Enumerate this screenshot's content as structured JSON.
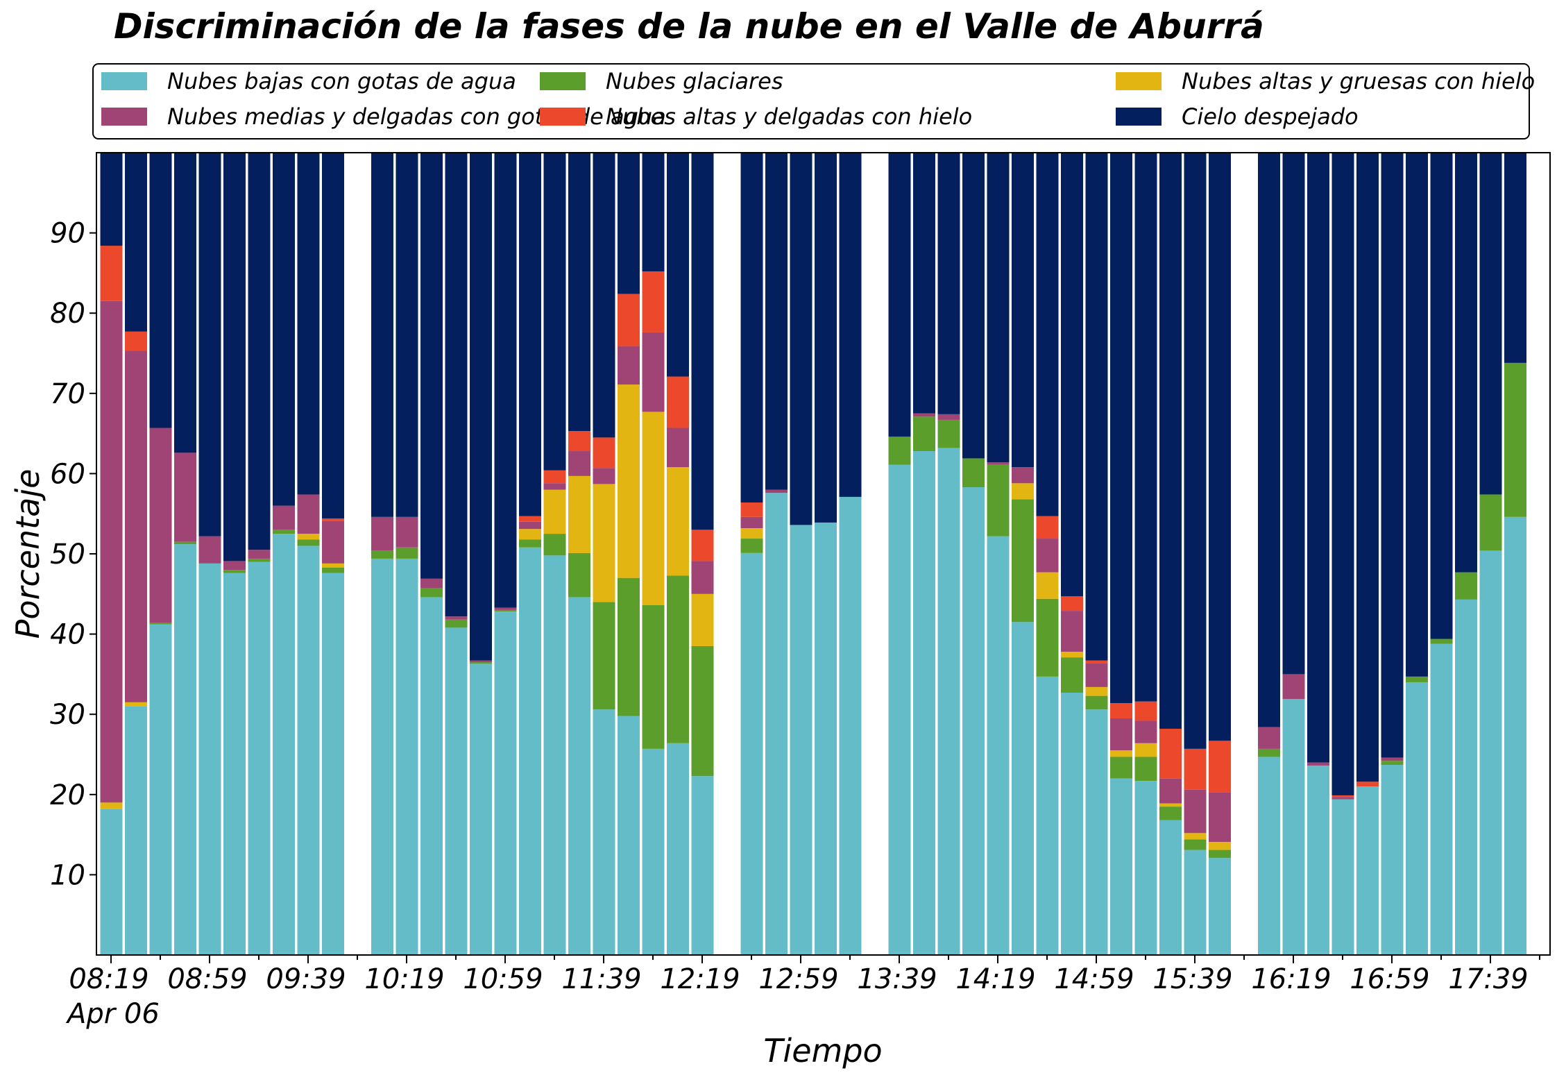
{
  "chart_data": {
    "type": "bar",
    "stacked": true,
    "title": "Discriminación de la fases de la nube en el Valle de Aburrá",
    "xlabel": "Tiempo",
    "ylabel": "Porcentaje",
    "ylim": [
      0,
      100
    ],
    "yticks": [
      10,
      20,
      30,
      40,
      50,
      60,
      70,
      80,
      90
    ],
    "grid": false,
    "legend_placement": "top, above plot, 3 columns",
    "x_tick_labels": [
      "08:19",
      "08:59",
      "09:39",
      "10:19",
      "10:59",
      "11:39",
      "12:19",
      "12:59",
      "13:39",
      "14:19",
      "14:59",
      "15:39",
      "16:19",
      "16:59",
      "17:39"
    ],
    "x_date_label": "Apr 06",
    "series": [
      {
        "name": "Nubes bajas con gotas de agua",
        "color": "#64bcc8"
      },
      {
        "name": "Nubes glaciares",
        "color": "#5b9e2b"
      },
      {
        "name": "Nubes altas y gruesas con hielo",
        "color": "#e3b512"
      },
      {
        "name": "Nubes medias y delgadas con gotas de agua",
        "color": "#a04476"
      },
      {
        "name": "Nubes altas y delgadas con hielo",
        "color": "#ec492c"
      },
      {
        "name": "Cielo despejado",
        "color": "#031f5e"
      }
    ],
    "bars": [
      {
        "time": "08:19",
        "values": [
          18.2,
          0,
          0.8,
          62.5,
          6.9,
          11.6
        ]
      },
      {
        "time": "08:29",
        "values": [
          31.0,
          0,
          0.5,
          43.8,
          2.4,
          22.3
        ]
      },
      {
        "time": "08:39",
        "values": [
          41.2,
          0.2,
          0,
          24.3,
          0,
          34.3
        ]
      },
      {
        "time": "08:49",
        "values": [
          51.2,
          0.3,
          0,
          11.1,
          0,
          37.4
        ]
      },
      {
        "time": "08:59",
        "values": [
          48.8,
          0,
          0,
          3.4,
          0,
          47.8
        ]
      },
      {
        "time": "09:09",
        "values": [
          47.6,
          0.4,
          0,
          1.1,
          0,
          50.9
        ]
      },
      {
        "time": "09:19",
        "values": [
          49.0,
          0.4,
          0,
          1.1,
          0,
          49.5
        ]
      },
      {
        "time": "09:29",
        "values": [
          52.5,
          0.5,
          0,
          3.0,
          0,
          44.0
        ]
      },
      {
        "time": "09:39",
        "values": [
          51.0,
          0.8,
          0.7,
          4.9,
          0,
          42.6
        ]
      },
      {
        "time": "09:49",
        "values": [
          47.6,
          0.7,
          0.5,
          5.3,
          0.3,
          45.6
        ]
      },
      {
        "time": "09:59",
        "values": [
          0,
          0,
          0,
          0,
          0,
          0
        ]
      },
      {
        "time": "10:09",
        "values": [
          49.4,
          1.0,
          0,
          4.2,
          0,
          45.4
        ]
      },
      {
        "time": "10:19",
        "values": [
          49.4,
          1.4,
          0,
          3.8,
          0,
          45.4
        ]
      },
      {
        "time": "10:29",
        "values": [
          44.6,
          1.1,
          0,
          1.2,
          0,
          53.1
        ]
      },
      {
        "time": "10:39",
        "values": [
          40.8,
          1.0,
          0,
          0.4,
          0,
          57.8
        ]
      },
      {
        "time": "10:49",
        "values": [
          36.3,
          0.2,
          0,
          0.2,
          0,
          63.3
        ]
      },
      {
        "time": "10:59",
        "values": [
          42.8,
          0.2,
          0,
          0.3,
          0,
          56.7
        ]
      },
      {
        "time": "11:09",
        "values": [
          50.8,
          1.0,
          1.3,
          0.9,
          0.7,
          45.3
        ]
      },
      {
        "time": "11:19",
        "values": [
          49.8,
          2.7,
          5.5,
          0.8,
          1.6,
          39.6
        ]
      },
      {
        "time": "11:29",
        "values": [
          44.6,
          5.5,
          9.6,
          3.1,
          2.5,
          34.7
        ]
      },
      {
        "time": "11:39",
        "values": [
          30.6,
          13.4,
          14.7,
          2.0,
          3.8,
          35.5
        ]
      },
      {
        "time": "11:49",
        "values": [
          29.8,
          17.2,
          24.1,
          4.8,
          6.5,
          17.6
        ]
      },
      {
        "time": "11:59",
        "values": [
          25.7,
          17.9,
          24.1,
          9.9,
          7.6,
          14.8
        ]
      },
      {
        "time": "12:09",
        "values": [
          26.4,
          20.9,
          13.5,
          4.9,
          6.4,
          27.9
        ]
      },
      {
        "time": "12:19",
        "values": [
          22.3,
          16.2,
          6.5,
          4.1,
          3.9,
          47.0
        ]
      },
      {
        "time": "12:29",
        "values": [
          0,
          0,
          0,
          0,
          0,
          0
        ]
      },
      {
        "time": "12:39",
        "values": [
          50.1,
          1.8,
          1.3,
          1.4,
          1.8,
          43.6
        ]
      },
      {
        "time": "12:49",
        "values": [
          57.6,
          0,
          0,
          0.4,
          0,
          42.0
        ]
      },
      {
        "time": "12:59",
        "values": [
          53.6,
          0,
          0,
          0,
          0,
          46.4
        ]
      },
      {
        "time": "13:09",
        "values": [
          53.9,
          0,
          0,
          0,
          0,
          46.1
        ]
      },
      {
        "time": "13:19",
        "values": [
          57.1,
          0,
          0,
          0,
          0,
          42.9
        ]
      },
      {
        "time": "13:29",
        "values": [
          0,
          0,
          0,
          0,
          0,
          0
        ]
      },
      {
        "time": "13:39",
        "values": [
          61.1,
          3.5,
          0,
          0,
          0,
          35.4
        ]
      },
      {
        "time": "13:49",
        "values": [
          62.8,
          4.3,
          0,
          0.4,
          0,
          32.5
        ]
      },
      {
        "time": "13:59",
        "values": [
          63.2,
          3.5,
          0,
          0.7,
          0,
          32.6
        ]
      },
      {
        "time": "14:09",
        "values": [
          58.3,
          3.6,
          0,
          0,
          0,
          38.1
        ]
      },
      {
        "time": "14:19",
        "values": [
          52.2,
          8.9,
          0,
          0.3,
          0,
          38.6
        ]
      },
      {
        "time": "14:29",
        "values": [
          41.5,
          15.3,
          2.0,
          2.0,
          0,
          39.2
        ]
      },
      {
        "time": "14:39",
        "values": [
          34.7,
          9.7,
          3.3,
          4.2,
          2.8,
          45.3
        ]
      },
      {
        "time": "14:49",
        "values": [
          32.7,
          4.4,
          0.7,
          5.1,
          1.8,
          55.3
        ]
      },
      {
        "time": "14:59",
        "values": [
          30.6,
          1.7,
          1.1,
          3.0,
          0.3,
          63.3
        ]
      },
      {
        "time": "15:09",
        "values": [
          22.0,
          2.7,
          0.8,
          4.0,
          1.9,
          68.6
        ]
      },
      {
        "time": "15:19",
        "values": [
          21.7,
          3.0,
          1.7,
          2.8,
          2.4,
          68.4
        ]
      },
      {
        "time": "15:29",
        "values": [
          16.8,
          1.7,
          0.4,
          3.1,
          6.2,
          71.8
        ]
      },
      {
        "time": "15:39",
        "values": [
          13.1,
          1.3,
          0.8,
          5.4,
          5.1,
          74.3
        ]
      },
      {
        "time": "15:49",
        "values": [
          12.1,
          1.0,
          1.0,
          6.2,
          6.4,
          73.3
        ]
      },
      {
        "time": "15:59",
        "values": [
          0,
          0,
          0,
          0,
          0,
          0
        ]
      },
      {
        "time": "16:09",
        "values": [
          24.7,
          1.0,
          0,
          2.7,
          0,
          71.6
        ]
      },
      {
        "time": "16:19",
        "values": [
          31.9,
          0,
          0,
          3.1,
          0,
          65.0
        ]
      },
      {
        "time": "16:29",
        "values": [
          23.6,
          0,
          0,
          0.4,
          0,
          76.0
        ]
      },
      {
        "time": "16:39",
        "values": [
          19.4,
          0,
          0,
          0.3,
          0.2,
          80.1
        ]
      },
      {
        "time": "16:49",
        "values": [
          21.0,
          0,
          0,
          0,
          0.6,
          78.4
        ]
      },
      {
        "time": "16:59",
        "values": [
          23.7,
          0.5,
          0,
          0.4,
          0,
          75.4
        ]
      },
      {
        "time": "17:09",
        "values": [
          34.0,
          0.7,
          0,
          0,
          0,
          65.3
        ]
      },
      {
        "time": "17:19",
        "values": [
          38.8,
          0.6,
          0,
          0,
          0,
          60.6
        ]
      },
      {
        "time": "17:29",
        "values": [
          44.3,
          3.4,
          0,
          0,
          0,
          52.3
        ]
      },
      {
        "time": "17:39",
        "values": [
          50.4,
          7.0,
          0,
          0,
          0,
          42.6
        ]
      },
      {
        "time": "17:49",
        "values": [
          54.6,
          19.2,
          0,
          0,
          0,
          26.2
        ]
      }
    ]
  }
}
